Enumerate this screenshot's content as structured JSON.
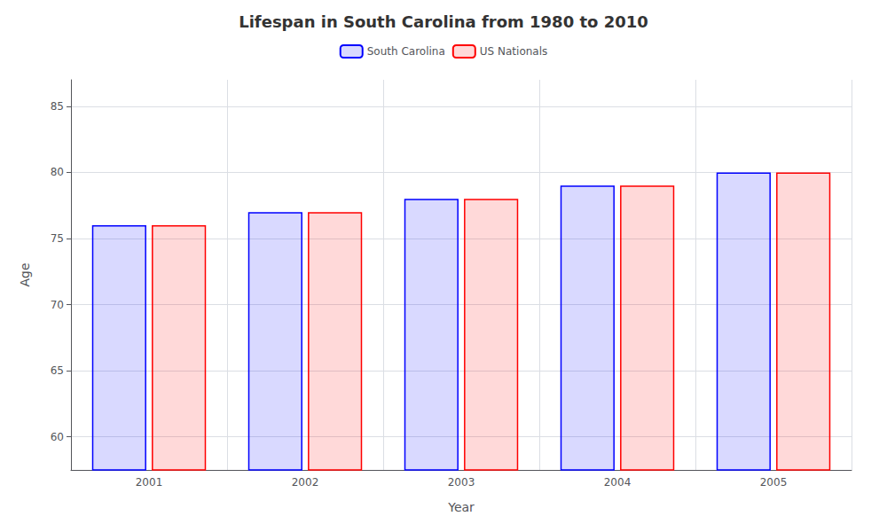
{
  "chart_data": {
    "type": "bar",
    "title": "Lifespan in South Carolina from 1980 to 2010",
    "xlabel": "Year",
    "ylabel": "Age",
    "categories": [
      "2001",
      "2002",
      "2003",
      "2004",
      "2005"
    ],
    "series": [
      {
        "name": "South Carolina",
        "color": "#0000ff",
        "values": [
          76,
          77,
          78,
          79,
          80
        ]
      },
      {
        "name": "US Nationals",
        "color": "#ff0000",
        "values": [
          76,
          77,
          78,
          79,
          80
        ]
      }
    ],
    "ylim": [
      57.5,
      87
    ],
    "yticks": [
      60,
      65,
      70,
      75,
      80,
      85
    ],
    "grid": true,
    "legend": "top"
  }
}
